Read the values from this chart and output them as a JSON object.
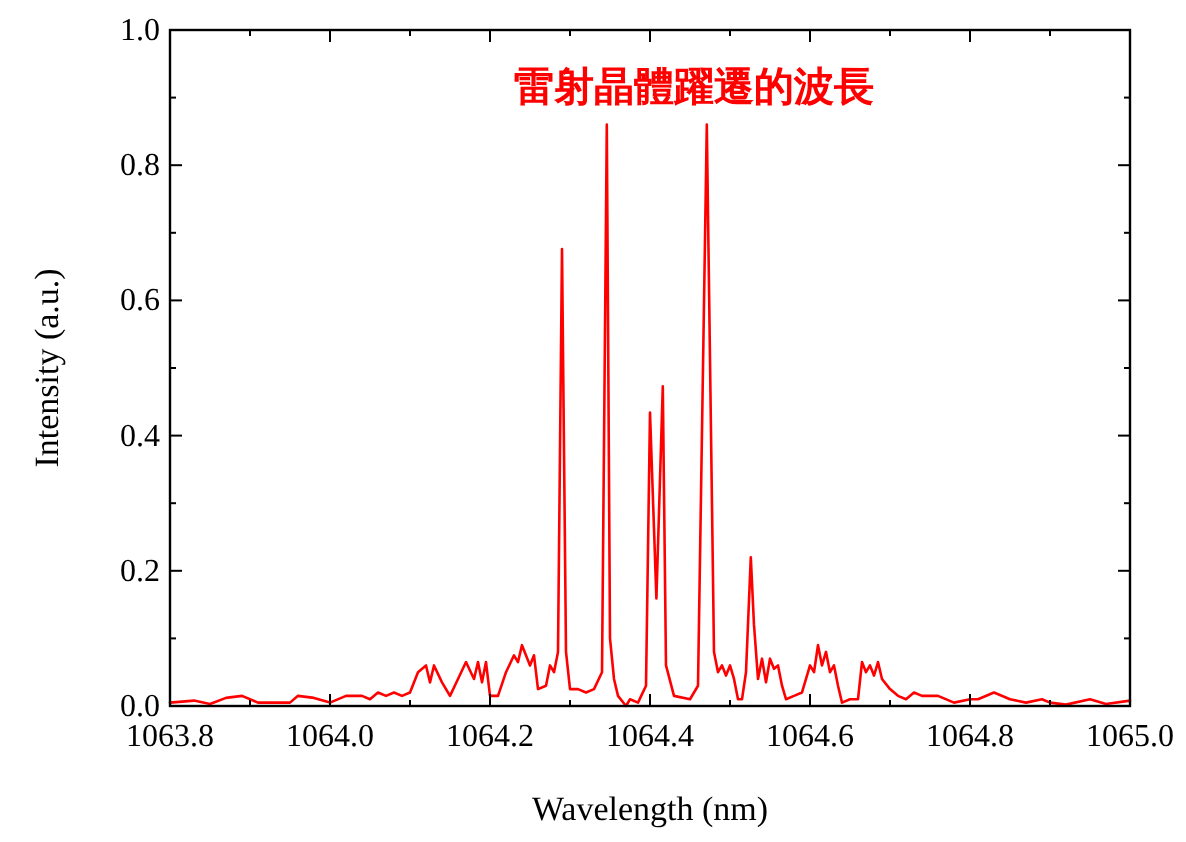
{
  "chart_data": {
    "type": "line",
    "xlabel": "Wavelength (nm)",
    "ylabel": "Intensity (a.u.)",
    "annotations": [
      "雷射晶體躍遷的波長"
    ],
    "xlim": [
      1063.8,
      1065.0
    ],
    "ylim": [
      0,
      1.0
    ],
    "xticks": [
      1063.8,
      {
        "value": 1063.9,
        "label": null
      },
      {
        "value": 1064.0,
        "label": "1064.0"
      },
      {
        "value": 1064.1,
        "label": null
      },
      1064.2,
      {
        "value": 1064.3,
        "label": null
      },
      1064.4,
      {
        "value": 1064.5,
        "label": null
      },
      1064.6,
      {
        "value": 1064.7,
        "label": null
      },
      1064.8,
      {
        "value": 1064.9,
        "label": null
      },
      {
        "value": 1065.0,
        "label": "1065.0"
      }
    ],
    "yticks": [
      {
        "value": 0.0,
        "label": "0.0"
      },
      {
        "value": 0.1,
        "label": null
      },
      0.2,
      {
        "value": 0.3,
        "label": null
      },
      0.4,
      {
        "value": 0.5,
        "label": null
      },
      0.6,
      {
        "value": 0.7,
        "label": null
      },
      0.8,
      {
        "value": 0.9,
        "label": null
      },
      {
        "value": 1.0,
        "label": "1.0"
      }
    ],
    "x": [
      1063.8,
      1063.83,
      1063.85,
      1063.87,
      1063.89,
      1063.91,
      1063.95,
      1063.96,
      1063.98,
      1064.0,
      1064.02,
      1064.04,
      1064.05,
      1064.06,
      1064.07,
      1064.08,
      1064.09,
      1064.1,
      1064.11,
      1064.12,
      1064.125,
      1064.13,
      1064.14,
      1064.15,
      1064.16,
      1064.17,
      1064.18,
      1064.185,
      1064.19,
      1064.195,
      1064.2,
      1064.21,
      1064.22,
      1064.23,
      1064.235,
      1064.24,
      1064.25,
      1064.255,
      1064.26,
      1064.27,
      1064.275,
      1064.28,
      1064.285,
      1064.29,
      1064.295,
      1064.3,
      1064.31,
      1064.32,
      1064.33,
      1064.34,
      1064.346,
      1064.35,
      1064.355,
      1064.36,
      1064.37,
      1064.375,
      1064.385,
      1064.395,
      1064.4,
      1064.408,
      1064.416,
      1064.42,
      1064.43,
      1064.45,
      1064.46,
      1064.471,
      1064.48,
      1064.485,
      1064.49,
      1064.495,
      1064.5,
      1064.505,
      1064.51,
      1064.515,
      1064.52,
      1064.526,
      1064.53,
      1064.535,
      1064.54,
      1064.545,
      1064.55,
      1064.555,
      1064.56,
      1064.565,
      1064.57,
      1064.58,
      1064.59,
      1064.6,
      1064.605,
      1064.61,
      1064.615,
      1064.62,
      1064.625,
      1064.63,
      1064.635,
      1064.64,
      1064.65,
      1064.66,
      1064.665,
      1064.67,
      1064.675,
      1064.68,
      1064.685,
      1064.69,
      1064.7,
      1064.71,
      1064.72,
      1064.73,
      1064.74,
      1064.76,
      1064.78,
      1064.8,
      1064.81,
      1064.83,
      1064.85,
      1064.87,
      1064.89,
      1064.9,
      1064.92,
      1064.95,
      1064.97,
      1065.0
    ],
    "series": [
      {
        "color": "#ff0000",
        "values": [
          0.005,
          0.008,
          0.003,
          0.012,
          0.015,
          0.005,
          0.005,
          0.015,
          0.012,
          0.005,
          0.015,
          0.015,
          0.01,
          0.02,
          0.015,
          0.02,
          0.015,
          0.02,
          0.05,
          0.06,
          0.035,
          0.06,
          0.035,
          0.015,
          0.04,
          0.065,
          0.04,
          0.065,
          0.035,
          0.065,
          0.015,
          0.015,
          0.05,
          0.075,
          0.065,
          0.09,
          0.06,
          0.075,
          0.025,
          0.03,
          0.06,
          0.05,
          0.08,
          0.676,
          0.08,
          0.025,
          0.025,
          0.02,
          0.025,
          0.05,
          0.86,
          0.1,
          0.04,
          0.015,
          0.0,
          0.01,
          0.005,
          0.03,
          0.434,
          0.159,
          0.473,
          0.06,
          0.015,
          0.01,
          0.03,
          0.86,
          0.08,
          0.05,
          0.06,
          0.045,
          0.06,
          0.04,
          0.01,
          0.01,
          0.05,
          0.22,
          0.12,
          0.04,
          0.07,
          0.035,
          0.07,
          0.055,
          0.06,
          0.03,
          0.01,
          0.015,
          0.02,
          0.06,
          0.05,
          0.09,
          0.06,
          0.08,
          0.05,
          0.06,
          0.03,
          0.005,
          0.01,
          0.01,
          0.065,
          0.05,
          0.06,
          0.045,
          0.065,
          0.04,
          0.025,
          0.015,
          0.01,
          0.02,
          0.015,
          0.015,
          0.005,
          0.01,
          0.01,
          0.02,
          0.01,
          0.005,
          0.01,
          0.005,
          0.002,
          0.01,
          0.003,
          0.008
        ]
      }
    ]
  }
}
